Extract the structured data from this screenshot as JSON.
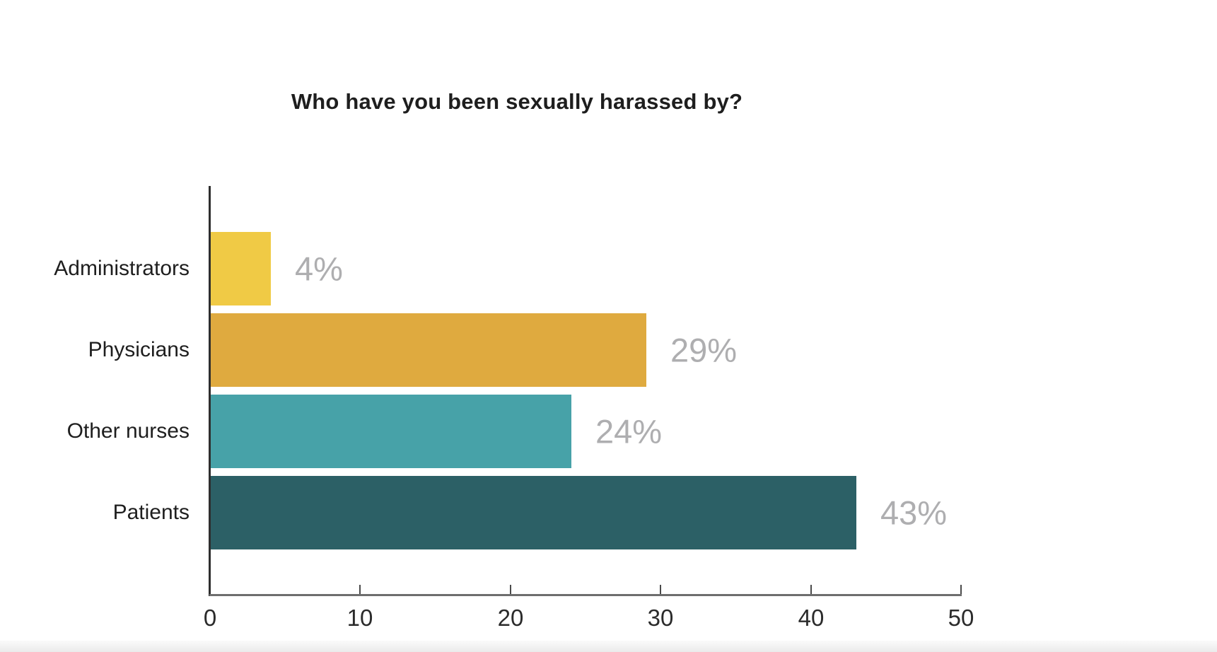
{
  "page": {
    "background": "#ffffff",
    "bottom_strip_color": "#ebebeb"
  },
  "chart_data": {
    "type": "bar",
    "orientation": "horizontal",
    "title": "Who have you been sexually harassed by?",
    "categories": [
      "Administrators",
      "Physicians",
      "Other nurses",
      "Patients"
    ],
    "values": [
      4,
      29,
      24,
      43
    ],
    "value_labels": [
      "4%",
      "29%",
      "24%",
      "43%"
    ],
    "bar_colors": [
      "#f0ca45",
      "#dfaa3f",
      "#47a2a8",
      "#2c6066"
    ],
    "xlabel": "",
    "ylabel": "",
    "xlim": [
      0,
      50
    ],
    "xticks": [
      0,
      10,
      20,
      30,
      40,
      50
    ],
    "grid": false,
    "legend": false,
    "colors": {
      "title": "#1e1e1e",
      "category_label": "#1e1e1e",
      "value_label": "#aeaeb0",
      "tick_label": "#2b2b2b",
      "x_axis_line": "#6e6e6e",
      "y_axis_line": "#2e2e2e",
      "tick_mark": "#4a4a4a"
    }
  }
}
